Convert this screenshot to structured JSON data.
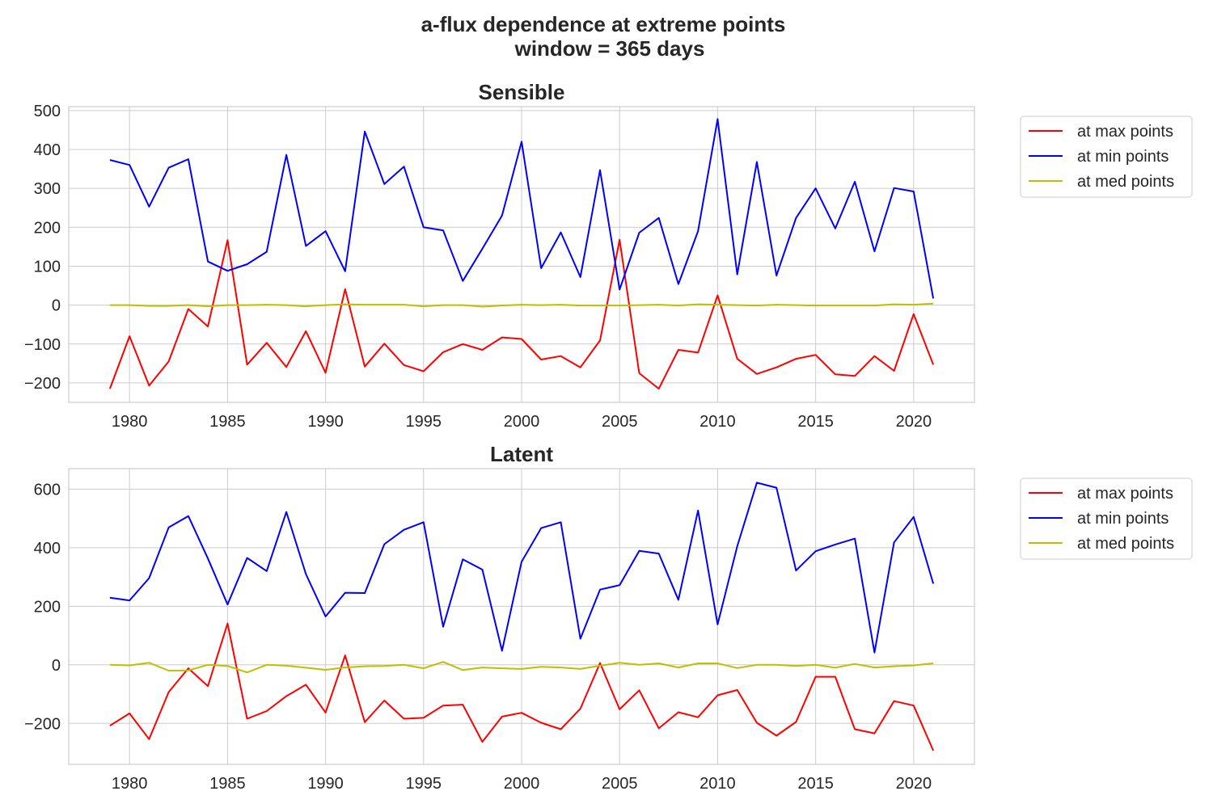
{
  "suptitle": [
    "a-flux dependence at extreme points",
    "window = 365 days"
  ],
  "chart_data": [
    {
      "type": "line",
      "title": "Sensible",
      "xlabel": "",
      "ylabel": "",
      "xlim": [
        1976.9,
        1023.1
      ],
      "ylim": [
        -250,
        510
      ],
      "xticks": [
        1980,
        1985,
        1990,
        1995,
        2000,
        2005,
        2010,
        2015,
        2020
      ],
      "yticks": [
        -200,
        -100,
        0,
        100,
        200,
        300,
        400,
        500
      ],
      "yticklabels": [
        "−200",
        "−100",
        "0",
        "100",
        "200",
        "300",
        "400",
        "500"
      ],
      "grid": true,
      "legend_position": "outside-top-right",
      "x": [
        1979,
        1980,
        1981,
        1982,
        1983,
        1984,
        1985,
        1986,
        1987,
        1988,
        1989,
        1990,
        1991,
        1992,
        1993,
        1994,
        1995,
        1996,
        1997,
        1998,
        1999,
        2000,
        2001,
        2002,
        2003,
        2004,
        2005,
        2006,
        2007,
        2008,
        2009,
        2010,
        2011,
        2012,
        2013,
        2014,
        2015,
        2016,
        2017,
        2018,
        2019,
        2020,
        2021
      ],
      "series": [
        {
          "name": "at max points",
          "color": "#ff0000",
          "values": [
            -215,
            -80,
            -207,
            -145,
            -10,
            -55,
            167,
            -153,
            -97,
            -159,
            -67,
            -174,
            41,
            -158,
            -99,
            -154,
            -170,
            -121,
            -100,
            -115,
            -83,
            -87,
            -140,
            -131,
            -160,
            -91,
            168,
            -175,
            -215,
            -115,
            -122,
            25,
            -138,
            -177,
            -160,
            -138,
            -128,
            -178,
            -182,
            -131,
            -169,
            -23,
            -153
          ]
        },
        {
          "name": "at min points",
          "color": "#0000ff",
          "values": [
            373,
            360,
            253,
            353,
            375,
            112,
            88,
            105,
            137,
            386,
            152,
            190,
            87,
            446,
            311,
            356,
            200,
            192,
            62,
            145,
            230,
            420,
            95,
            187,
            72,
            347,
            40,
            186,
            224,
            54,
            190,
            478,
            79,
            368,
            76,
            224,
            300,
            197,
            317,
            138,
            301,
            292,
            17
          ]
        },
        {
          "name": "at med points",
          "color": "#bfbf00",
          "values": [
            0,
            0,
            -2,
            -2,
            0,
            -3,
            0,
            0,
            1,
            0,
            -3,
            0,
            2,
            1,
            1,
            1,
            -3,
            0,
            0,
            -4,
            -1,
            1,
            0,
            1,
            -1,
            -1,
            -1,
            0,
            1,
            -1,
            2,
            1,
            0,
            -1,
            1,
            0,
            -1,
            -1,
            -1,
            -1,
            2,
            1,
            4
          ]
        }
      ]
    },
    {
      "type": "line",
      "title": "Latent",
      "xlabel": "",
      "ylabel": "",
      "xlim": [
        1976.9,
        2023.1
      ],
      "ylim": [
        -340,
        670
      ],
      "xticks": [
        1980,
        1985,
        1990,
        1995,
        2000,
        2005,
        2010,
        2015,
        2020
      ],
      "yticks": [
        -200,
        0,
        200,
        400,
        600
      ],
      "yticklabels": [
        "−200",
        "0",
        "200",
        "400",
        "600"
      ],
      "grid": true,
      "legend_position": "outside-top-right",
      "x": [
        1979,
        1980,
        1981,
        1982,
        1983,
        1984,
        1985,
        1986,
        1987,
        1988,
        1989,
        1990,
        1991,
        1992,
        1993,
        1994,
        1995,
        1996,
        1997,
        1998,
        1999,
        2000,
        2001,
        2002,
        2003,
        2004,
        2005,
        2006,
        2007,
        2008,
        2009,
        2010,
        2011,
        2012,
        2013,
        2014,
        2015,
        2016,
        2017,
        2018,
        2019,
        2020,
        2021
      ],
      "series": [
        {
          "name": "at max points",
          "color": "#ff0000",
          "values": [
            -208,
            -166,
            -254,
            -93,
            -12,
            -73,
            141,
            -184,
            -158,
            -107,
            -68,
            -163,
            32,
            -196,
            -122,
            -184,
            -181,
            -139,
            -136,
            -263,
            -177,
            -164,
            -198,
            -220,
            -150,
            6,
            -152,
            -87,
            -217,
            -162,
            -179,
            -104,
            -86,
            -198,
            -242,
            -195,
            -41,
            -41,
            -220,
            -234,
            -124,
            -139,
            -293
          ]
        },
        {
          "name": "at min points",
          "color": "#0000ff",
          "values": [
            229,
            220,
            296,
            469,
            508,
            363,
            206,
            365,
            320,
            522,
            310,
            165,
            246,
            245,
            412,
            461,
            487,
            130,
            360,
            325,
            48,
            352,
            467,
            487,
            89,
            257,
            272,
            389,
            380,
            222,
            527,
            138,
            405,
            622,
            605,
            322,
            388,
            411,
            431,
            42,
            418,
            505,
            277
          ]
        },
        {
          "name": "at med points",
          "color": "#bfbf00",
          "values": [
            0,
            -2,
            7,
            -20,
            -19,
            0,
            -4,
            -26,
            0,
            -3,
            -10,
            -17,
            -9,
            -5,
            -4,
            0,
            -12,
            10,
            -18,
            -9,
            -12,
            -14,
            -7,
            -9,
            -14,
            -3,
            7,
            0,
            5,
            -9,
            5,
            5,
            -11,
            0,
            0,
            -4,
            0,
            -10,
            3,
            -9,
            -5,
            -2,
            5
          ]
        }
      ]
    }
  ]
}
